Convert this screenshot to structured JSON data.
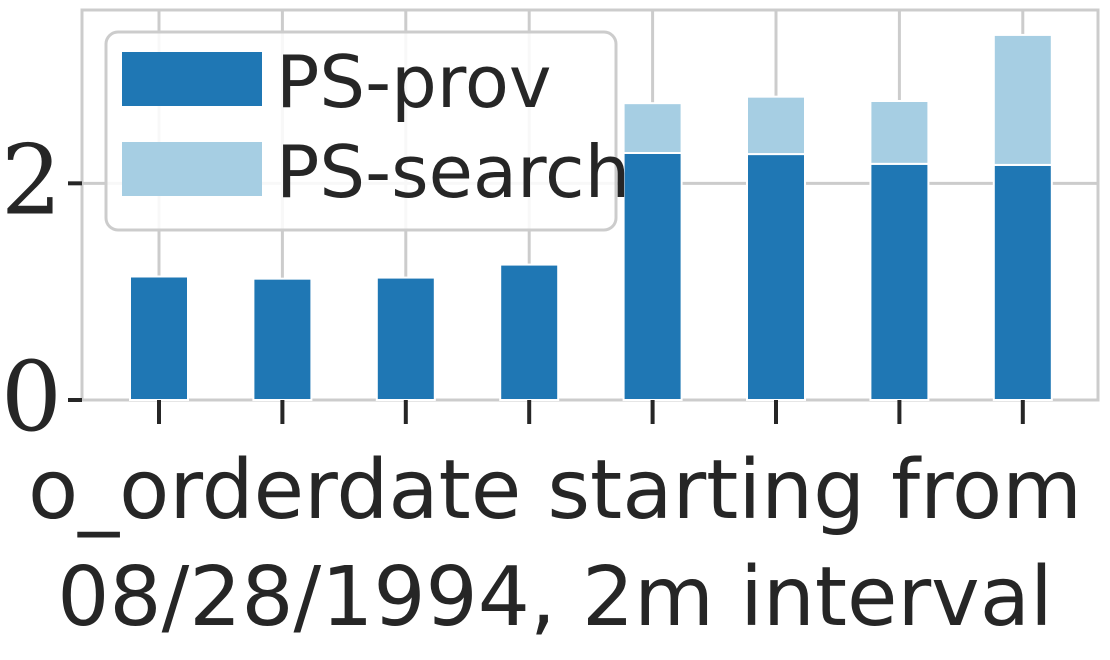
{
  "chart_data": {
    "type": "bar",
    "stacked": true,
    "categories": [
      "",
      "",
      "",
      "",
      "",
      "",
      "",
      ""
    ],
    "series": [
      {
        "name": "PS-prov",
        "color": "#1f77b4",
        "values": [
          1.14,
          1.12,
          1.13,
          1.25,
          2.28,
          2.27,
          2.18,
          2.17
        ]
      },
      {
        "name": "PS-search",
        "color": "#a6cee3",
        "values": [
          0,
          0,
          0,
          0,
          0.46,
          0.53,
          0.58,
          1.2
        ]
      }
    ],
    "xlabel": "o_orderdate starting from 08/28/1994, 2m interval",
    "xlabel_lines": [
      "o_orderdate starting from",
      "08/28/1994, 2m interval"
    ],
    "ylabel": "",
    "ylim": [
      0,
      3.6
    ],
    "yticks": [
      0,
      2
    ],
    "ytick_labels": [
      "0",
      "2"
    ],
    "grid": true,
    "legend_position": "top-left"
  }
}
